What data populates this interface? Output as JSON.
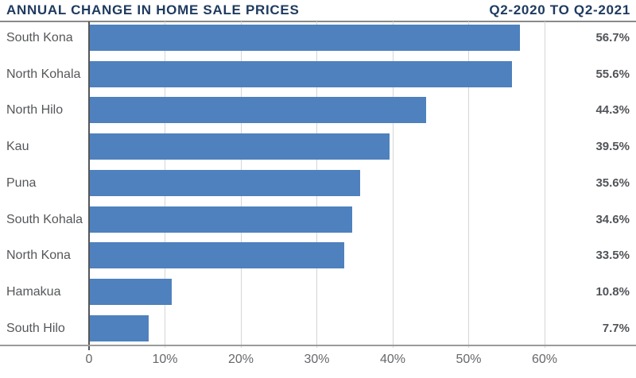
{
  "header": {
    "title": "ANNUAL CHANGE IN HOME SALE PRICES",
    "period": "Q2-2020 TO Q2-2021"
  },
  "chart_data": {
    "type": "bar",
    "orientation": "horizontal",
    "title": "ANNUAL CHANGE IN HOME SALE PRICES",
    "subtitle": "Q2-2020 TO Q2-2021",
    "categories": [
      "South Kona",
      "North Kohala",
      "North Hilo",
      "Kau",
      "Puna",
      "South Kohala",
      "North Kona",
      "Hamakua",
      "South Hilo"
    ],
    "values": [
      56.7,
      55.6,
      44.3,
      39.5,
      35.6,
      34.6,
      33.5,
      10.8,
      7.7
    ],
    "value_labels": [
      "56.7%",
      "55.6%",
      "44.3%",
      "39.5%",
      "35.6%",
      "34.6%",
      "33.5%",
      "10.8%",
      "7.7%"
    ],
    "x_ticks": [
      {
        "value": 0,
        "label": "0"
      },
      {
        "value": 10,
        "label": "10%"
      },
      {
        "value": 20,
        "label": "20%"
      },
      {
        "value": 30,
        "label": "30%"
      },
      {
        "value": 40,
        "label": "40%"
      },
      {
        "value": 50,
        "label": "50%"
      },
      {
        "value": 60,
        "label": "60%"
      }
    ],
    "xlim": [
      0,
      60
    ],
    "grid": "vertical-gridlines-on",
    "legend": "none",
    "colors": {
      "bar": "#4E81BD",
      "title": "#1E3A5F",
      "category_label": "#55575A",
      "value_label": "#515458",
      "tick_label": "#66686B",
      "gridline": "#D5D5D5",
      "zero_axis": "#55565A",
      "header_rule": "#8A8A8A",
      "bottom_axis": "#9B9B9B"
    }
  }
}
